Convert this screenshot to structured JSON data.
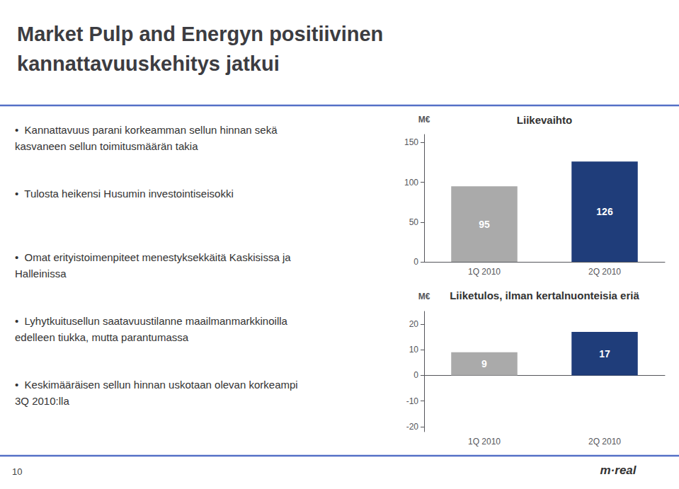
{
  "title": "Market Pulp and Energyn positiivinen\nkannattavuuskehitys jatkui",
  "annotations": [
    "•  Kannattavuus parani korkeamman sellun hinnan sekä\nkasvaneen sellun toimitusmäärän takia",
    "•  Tulosta heikensi Husumin investointiseisokki",
    "•  Omat erityistoimenpiteet menestyksekkäitä Kaskisissa ja\nHalleinissa",
    "•  Lyhytkuitusellun saatavuustilanne maailmanmarkkinoilla\nedelleen tiukka, mutta parantumassa",
    "•  Keskimääräisen sellun hinnan uskotaan olevan korkeampi\n3Q 2010:lla"
  ],
  "footer": "10",
  "logo": "m·real",
  "chart_data": [
    {
      "type": "bar",
      "title": "Liikevaihto",
      "y_label": "M€",
      "categories": [
        "1Q 2010",
        "2Q 2010"
      ],
      "values": [
        95,
        126
      ],
      "colors": [
        "#AAAAAA",
        "#1F3D7A"
      ],
      "ylim": [
        0,
        160
      ],
      "yticks": [
        0,
        50,
        100,
        150
      ],
      "grid": false,
      "data_labels": true
    },
    {
      "type": "bar",
      "title": "Liiketulos, ilman kertalnuonteisia eriä",
      "y_label": "M€",
      "categories": [
        "1Q 2010",
        "2Q 2010"
      ],
      "values": [
        9,
        17
      ],
      "colors": [
        "#AAAAAA",
        "#1F3D7A"
      ],
      "ylim": [
        -22,
        25
      ],
      "yticks": [
        -20,
        -10,
        0,
        10,
        20
      ],
      "grid": false,
      "data_labels": true
    }
  ]
}
